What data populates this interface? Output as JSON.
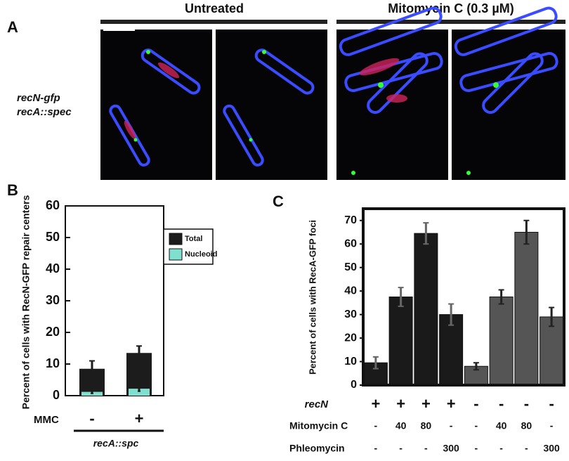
{
  "panel_a": {
    "label": "A",
    "conditions": [
      "Untreated",
      "Mitomycin C (0.3 µM)"
    ],
    "strain": [
      "recN-gfp",
      "recA::spec"
    ]
  },
  "chart_data": [
    {
      "type": "bar",
      "panel": "B",
      "ylabel": "Percent of cells with RecN-GFP repair centers",
      "categories": [
        "-",
        "+"
      ],
      "row_label": "MMC",
      "group_label": "recA::spc",
      "ylim": [
        0,
        60
      ],
      "yticks": [
        0,
        10,
        20,
        30,
        40,
        50,
        60
      ],
      "series": [
        {
          "name": "Total",
          "color": "#1c1c1c",
          "values": [
            8.5,
            13.5
          ],
          "errors": [
            2.5,
            2.2
          ]
        },
        {
          "name": "Nucleoid",
          "color": "#7fe0d0",
          "values": [
            1.2,
            2.2
          ],
          "errors": [
            0.5,
            0.8
          ]
        }
      ]
    },
    {
      "type": "bar",
      "panel": "C",
      "ylabel": "Percent of cells with RecA-GFP foci",
      "rows": [
        {
          "name": "recN",
          "labels": [
            "+",
            "+",
            "+",
            "+",
            "-",
            "-",
            "-",
            "-"
          ]
        },
        {
          "name": "Mitomycin C",
          "labels": [
            "-",
            "40",
            "80",
            "-",
            "-",
            "40",
            "80",
            "-"
          ]
        },
        {
          "name": "Phleomycin",
          "labels": [
            "-",
            "-",
            "-",
            "300",
            "-",
            "-",
            "-",
            "300"
          ]
        }
      ],
      "ylim": [
        0,
        75
      ],
      "yticks": [
        0,
        10,
        20,
        30,
        40,
        50,
        60,
        70
      ],
      "values": [
        9.5,
        37.5,
        64.5,
        30,
        8,
        37.5,
        65,
        29
      ],
      "errors": [
        2.5,
        4,
        4.5,
        4.5,
        1.5,
        3,
        5,
        4
      ],
      "colors": [
        "#1a1a1a",
        "#1a1a1a",
        "#1a1a1a",
        "#1a1a1a",
        "#555555",
        "#555555",
        "#555555",
        "#555555"
      ],
      "error_colors": [
        "#666666",
        "#666666",
        "#666666",
        "#666666",
        "#222222",
        "#222222",
        "#222222",
        "#222222"
      ]
    }
  ]
}
